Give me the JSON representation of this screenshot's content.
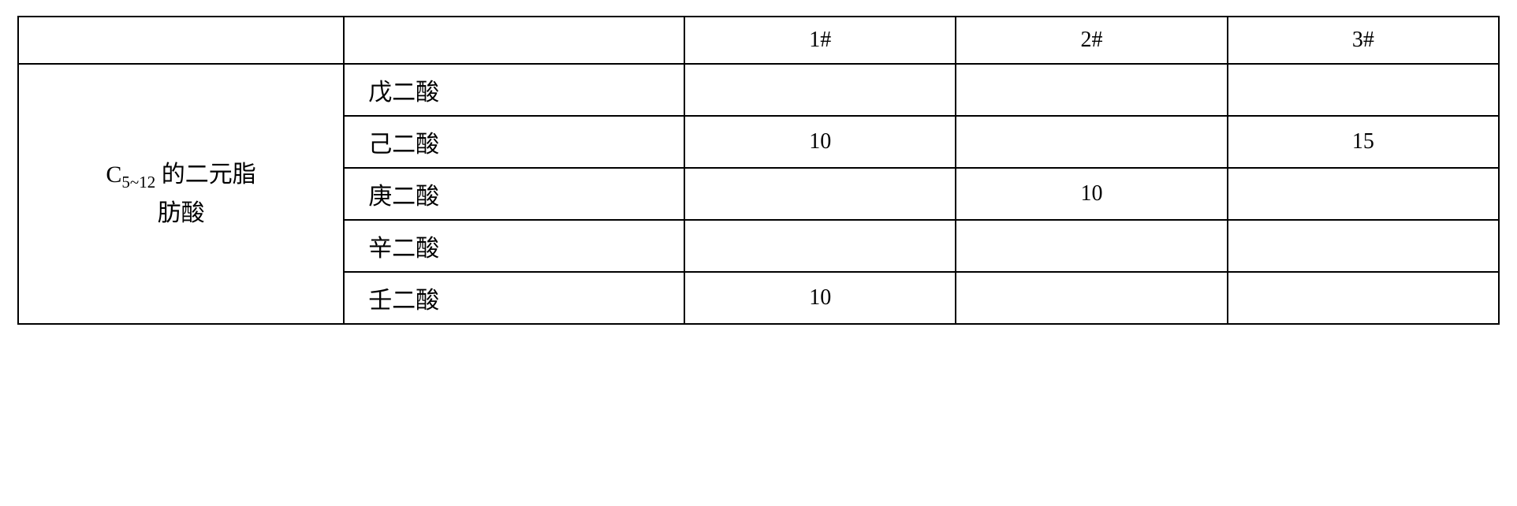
{
  "table": {
    "type": "table",
    "border_color": "#000000",
    "background_color": "#ffffff",
    "text_color": "#000000",
    "font_family": "SimSun",
    "header_fontsize": 28,
    "cell_fontsize": 28,
    "row_header_fontsize": 30,
    "header": {
      "col1": "",
      "col2": "",
      "col3": "1#",
      "col4": "2#",
      "col5": "3#"
    },
    "row_group_label_prefix": "C",
    "row_group_label_subscript": "5~12",
    "row_group_label_suffix1": " 的二元脂",
    "row_group_label_suffix2": "肪酸",
    "rows": [
      {
        "acid": "戊二酸",
        "v1": "",
        "v2": "",
        "v3": ""
      },
      {
        "acid": "己二酸",
        "v1": "10",
        "v2": "",
        "v3": "15"
      },
      {
        "acid": "庚二酸",
        "v1": "",
        "v2": "10",
        "v3": ""
      },
      {
        "acid": "辛二酸",
        "v1": "",
        "v2": "",
        "v3": ""
      },
      {
        "acid": "壬二酸",
        "v1": "10",
        "v2": "",
        "v3": ""
      }
    ],
    "column_widths_pct": [
      22,
      23,
      18.33,
      18.33,
      18.33
    ]
  }
}
